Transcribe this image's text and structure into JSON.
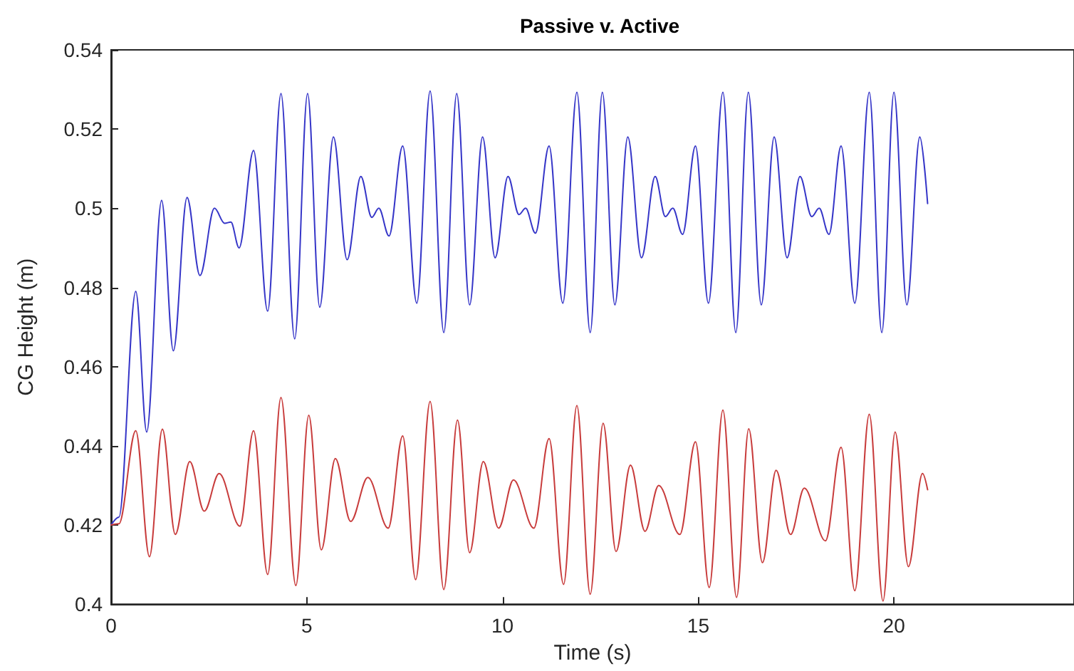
{
  "chart_data": {
    "type": "line",
    "title": "Passive v. Active",
    "xlabel": "Time (s)",
    "ylabel": "CG Height (m)",
    "xlim": [
      0,
      24.6
    ],
    "xticks": [
      0,
      5,
      10,
      15,
      20
    ],
    "ylim": [
      0.4,
      0.54
    ],
    "yticks": [
      0.4,
      0.42,
      0.44,
      0.46,
      0.48,
      0.5,
      0.52,
      0.54
    ],
    "grid": false,
    "marker": "none",
    "line_style": "solid",
    "series": [
      {
        "color": "#3636c8",
        "x": [
          0,
          0.2,
          0.63,
          0.91,
          1.29,
          1.59,
          1.94,
          2.27,
          2.64,
          2.9,
          3.06,
          3.27,
          3.64,
          4.0,
          4.34,
          4.69,
          5.02,
          5.33,
          5.68,
          6.03,
          6.38,
          6.66,
          6.84,
          7.1,
          7.45,
          7.81,
          8.15,
          8.5,
          8.83,
          9.16,
          9.49,
          9.81,
          10.14,
          10.42,
          10.59,
          10.84,
          11.19,
          11.54,
          11.9,
          12.24,
          12.55,
          12.87,
          13.2,
          13.55,
          13.9,
          14.16,
          14.35,
          14.6,
          14.93,
          15.26,
          15.63,
          15.96,
          16.28,
          16.61,
          16.94,
          17.27,
          17.6,
          17.9,
          18.09,
          18.34,
          18.65,
          19.0,
          19.37,
          19.69,
          20.0,
          20.33,
          20.66,
          20.86
        ],
        "values": [
          0.42,
          0.422,
          0.479,
          0.4435,
          0.502,
          0.464,
          0.5027,
          0.483,
          0.5,
          0.4962,
          0.4965,
          0.49,
          0.5146,
          0.474,
          0.529,
          0.467,
          0.529,
          0.475,
          0.518,
          0.487,
          0.508,
          0.4977,
          0.5,
          0.493,
          0.5157,
          0.476,
          0.5296,
          0.4686,
          0.529,
          0.4756,
          0.518,
          0.4875,
          0.508,
          0.4984,
          0.5,
          0.4937,
          0.5157,
          0.476,
          0.5293,
          0.4686,
          0.5293,
          0.4756,
          0.518,
          0.4875,
          0.508,
          0.4979,
          0.5,
          0.4934,
          0.5157,
          0.476,
          0.5293,
          0.4686,
          0.5293,
          0.4756,
          0.518,
          0.4875,
          0.508,
          0.4979,
          0.5,
          0.4934,
          0.5157,
          0.476,
          0.5293,
          0.4686,
          0.5293,
          0.4756,
          0.518,
          0.5012
        ]
      },
      {
        "color": "#c83c3c",
        "x": [
          0,
          0.2,
          0.63,
          0.98,
          1.31,
          1.64,
          2.01,
          2.38,
          2.76,
          3.29,
          3.64,
          4.0,
          4.34,
          4.72,
          5.05,
          5.37,
          5.73,
          6.12,
          6.56,
          7.08,
          7.45,
          7.78,
          8.15,
          8.5,
          8.85,
          9.16,
          9.51,
          9.9,
          10.28,
          10.8,
          11.19,
          11.56,
          11.9,
          12.24,
          12.57,
          12.9,
          13.27,
          13.64,
          13.99,
          14.53,
          14.93,
          15.28,
          15.63,
          15.98,
          16.29,
          16.64,
          16.99,
          17.36,
          17.71,
          18.25,
          18.65,
          19.0,
          19.37,
          19.72,
          20.03,
          20.37,
          20.73,
          20.86
        ],
        "values": [
          0.42,
          0.4203,
          0.4438,
          0.412,
          0.4442,
          0.4176,
          0.436,
          0.4235,
          0.433,
          0.4197,
          0.4438,
          0.4075,
          0.4522,
          0.4047,
          0.4477,
          0.4137,
          0.4368,
          0.4209,
          0.432,
          0.4192,
          0.4425,
          0.4062,
          0.4512,
          0.4037,
          0.4465,
          0.413,
          0.436,
          0.4192,
          0.4314,
          0.4192,
          0.4418,
          0.405,
          0.4502,
          0.4025,
          0.4457,
          0.4133,
          0.4351,
          0.4184,
          0.43,
          0.4176,
          0.441,
          0.4042,
          0.449,
          0.4017,
          0.4443,
          0.4105,
          0.4338,
          0.4176,
          0.4293,
          0.416,
          0.4396,
          0.4034,
          0.448,
          0.4008,
          0.4435,
          0.4095,
          0.433,
          0.4289
        ]
      }
    ]
  }
}
